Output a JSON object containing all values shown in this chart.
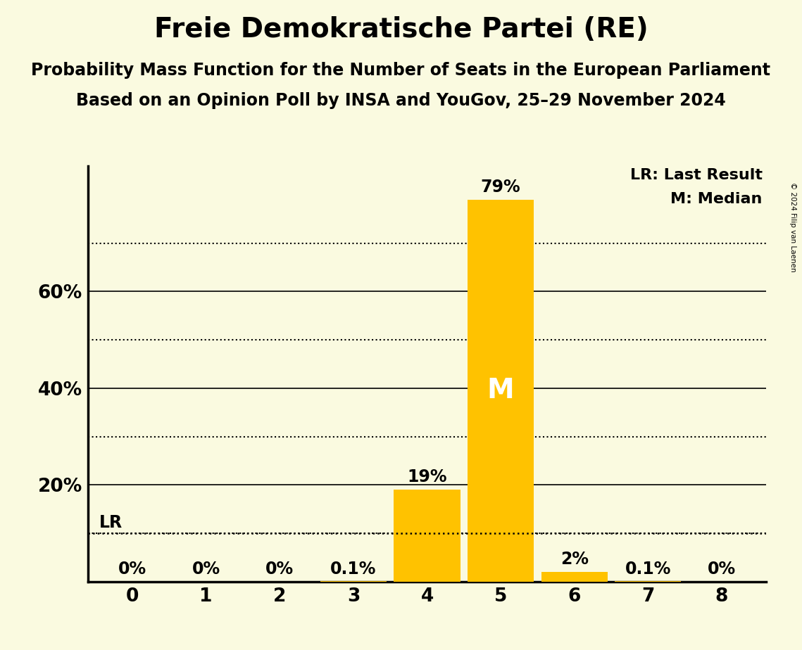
{
  "title": "Freie Demokratische Partei (RE)",
  "subtitle1": "Probability Mass Function for the Number of Seats in the European Parliament",
  "subtitle2": "Based on an Opinion Poll by INSA and YouGov, 25–29 November 2024",
  "copyright": "© 2024 Filip van Laenen",
  "categories": [
    0,
    1,
    2,
    3,
    4,
    5,
    6,
    7,
    8
  ],
  "values": [
    0.0,
    0.0,
    0.0,
    0.001,
    0.19,
    0.79,
    0.02,
    0.001,
    0.0
  ],
  "bar_labels": [
    "0%",
    "0%",
    "0%",
    "0.1%",
    "19%",
    "79%",
    "2%",
    "0.1%",
    "0%"
  ],
  "bar_color": "#FFC200",
  "median_seat": 5,
  "median_label": "M",
  "lr_value": 0.1,
  "lr_label": "LR",
  "lr_legend": "LR: Last Result",
  "m_legend": "M: Median",
  "background_color": "#FAFAE0",
  "dotted_lines": [
    0.1,
    0.3,
    0.5,
    0.7
  ],
  "solid_lines": [
    0.2,
    0.4,
    0.6
  ],
  "ylim": [
    0,
    0.86
  ],
  "title_fontsize": 28,
  "subtitle_fontsize": 17,
  "bar_label_fontsize": 17,
  "axis_tick_fontsize": 19,
  "legend_fontsize": 16,
  "median_fontsize": 28
}
